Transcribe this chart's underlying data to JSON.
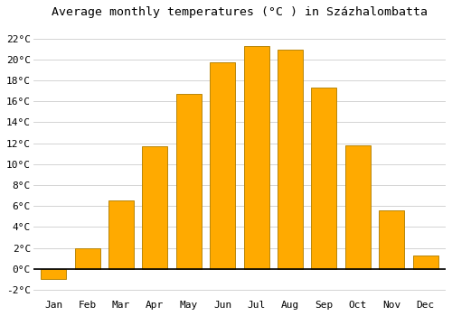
{
  "title": "Average monthly temperatures (°C ) in Százhalombatta",
  "months": [
    "Jan",
    "Feb",
    "Mar",
    "Apr",
    "May",
    "Jun",
    "Jul",
    "Aug",
    "Sep",
    "Oct",
    "Nov",
    "Dec"
  ],
  "values": [
    -1.0,
    2.0,
    6.5,
    11.7,
    16.7,
    19.7,
    21.3,
    20.9,
    17.3,
    11.8,
    5.6,
    1.3
  ],
  "bar_color": "#FFAA00",
  "bar_edge_color": "#B8860B",
  "background_color": "#FFFFFF",
  "grid_color": "#CCCCCC",
  "yticks": [
    -2,
    0,
    2,
    4,
    6,
    8,
    10,
    12,
    14,
    16,
    18,
    20,
    22
  ],
  "ylim": [
    -2.8,
    23.5
  ],
  "title_fontsize": 9.5,
  "tick_fontsize": 8,
  "bar_width": 0.75
}
